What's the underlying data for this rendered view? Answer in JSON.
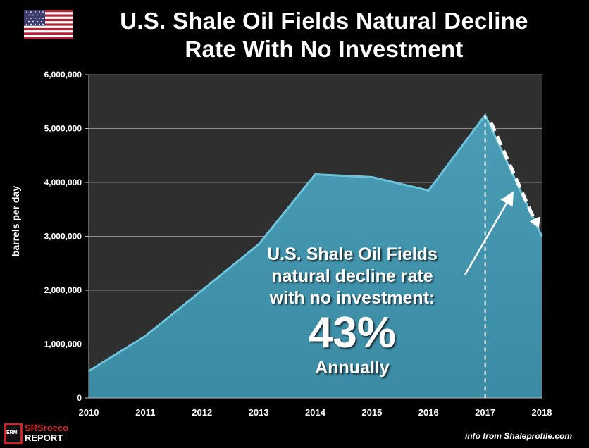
{
  "title_lines": [
    "U.S. Shale Oil Fields Natural Decline",
    "Rate With No Investment"
  ],
  "ylabel": "barrels per day",
  "annotation": {
    "lines": [
      "U.S. Shale Oil Fields",
      "natural decline rate",
      "with no investment:"
    ],
    "percent": "43%",
    "period": "Annually"
  },
  "source": "info from Shaleprofile.com",
  "logo": {
    "line1": "SRSrocco",
    "line2": "REPORT",
    "badge": "ERM"
  },
  "colors": {
    "plot_bg": "#2f2f2f",
    "area": "#3a8ba3",
    "area_edge": "#6cc3db",
    "background": "#000000",
    "flag_red": "#b22234",
    "flag_blue": "#3c3b6e"
  },
  "chart_data": {
    "type": "area",
    "x": [
      "2010",
      "2011",
      "2012",
      "2013",
      "2014",
      "2015",
      "2016",
      "2017",
      "2018"
    ],
    "values": [
      500000,
      1150000,
      2000000,
      2850000,
      4150000,
      4100000,
      3850000,
      5250000,
      3000000
    ],
    "ylim": [
      0,
      6000000
    ],
    "yticks": [
      "0",
      "1,000,000",
      "2,000,000",
      "3,000,000",
      "4,000,000",
      "5,000,000",
      "6,000,000"
    ],
    "ylabel": "barrels per day",
    "grid": true,
    "markers": {
      "peak_year": "2017",
      "dashed_decline": {
        "from": "2017",
        "to": "2018"
      }
    }
  }
}
